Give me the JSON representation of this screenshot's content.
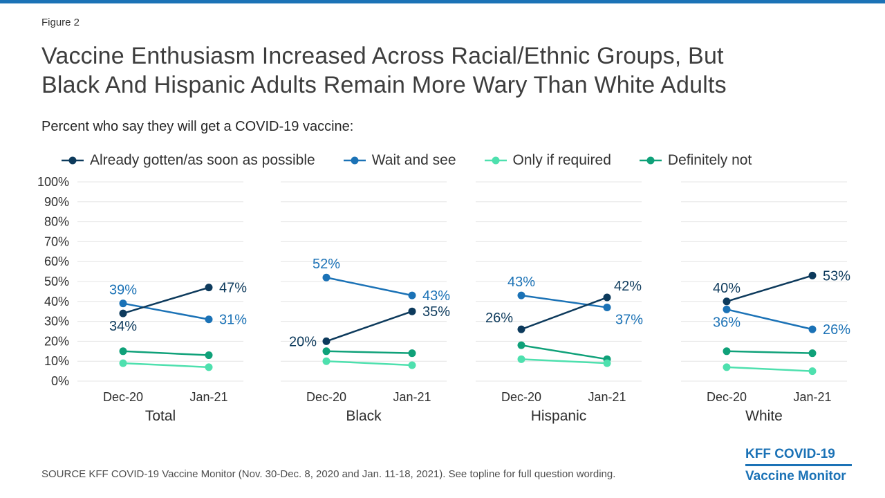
{
  "header": {
    "figure_label": "Figure 2",
    "title_line1": "Vaccine Enthusiasm Increased Across Racial/Ethnic Groups, But",
    "title_line2": "Black And Hispanic Adults Remain More Wary Than White Adults",
    "subtitle": "Percent who say they will get a COVID-19 vaccine:"
  },
  "footer": {
    "source": "SOURCE KFF COVID-19 Vaccine Monitor (Nov. 30-Dec. 8, 2020 and Jan. 11-18, 2021). See topline for full question wording.",
    "logo_line1": "KFF COVID-19",
    "logo_line2": "Vaccine Monitor"
  },
  "colors": {
    "accent": "#1b72b6",
    "navy": "#0d3a5c",
    "blue": "#1b72b6",
    "mint": "#4ee0ae",
    "green": "#0fa179",
    "grid": "#e4e4e4",
    "title_text": "#3d3d3d",
    "axis_text": "#2e2e2e"
  },
  "chart_data": {
    "type": "line",
    "categories": [
      "Dec-20",
      "Jan-21"
    ],
    "ylim": [
      0,
      100
    ],
    "y_tick_step": 10,
    "y_tick_suffix": "%",
    "grid": true,
    "legend_position": "top",
    "legend": [
      {
        "label": "Already gotten/as soon as possible",
        "color": "#0d3a5c"
      },
      {
        "label": "Wait and see",
        "color": "#1b72b6"
      },
      {
        "label": "Only if required",
        "color": "#4ee0ae"
      },
      {
        "label": "Definitely not",
        "color": "#0fa179"
      }
    ],
    "panels": [
      {
        "label": "Total",
        "series": [
          {
            "name": "Already gotten/as soon as possible",
            "color": "#0d3a5c",
            "values": [
              34,
              47
            ],
            "labels": [
              {
                "text": "34%",
                "pos": "below"
              },
              {
                "text": "47%",
                "pos": "right"
              }
            ]
          },
          {
            "name": "Wait and see",
            "color": "#1b72b6",
            "values": [
              39,
              31
            ],
            "labels": [
              {
                "text": "39%",
                "pos": "above"
              },
              {
                "text": "31%",
                "pos": "right"
              }
            ]
          },
          {
            "name": "Only if required",
            "color": "#4ee0ae",
            "values": [
              9,
              7
            ],
            "labels": [
              null,
              null
            ]
          },
          {
            "name": "Definitely not",
            "color": "#0fa179",
            "values": [
              15,
              13
            ],
            "labels": [
              null,
              null
            ]
          }
        ]
      },
      {
        "label": "Black",
        "series": [
          {
            "name": "Already gotten/as soon as possible",
            "color": "#0d3a5c",
            "values": [
              20,
              35
            ],
            "labels": [
              {
                "text": "20%",
                "pos": "left"
              },
              {
                "text": "35%",
                "pos": "right"
              }
            ]
          },
          {
            "name": "Wait and see",
            "color": "#1b72b6",
            "values": [
              52,
              43
            ],
            "labels": [
              {
                "text": "52%",
                "pos": "above"
              },
              {
                "text": "43%",
                "pos": "right"
              }
            ]
          },
          {
            "name": "Only if required",
            "color": "#4ee0ae",
            "values": [
              10,
              8
            ],
            "labels": [
              null,
              null
            ]
          },
          {
            "name": "Definitely not",
            "color": "#0fa179",
            "values": [
              15,
              14
            ],
            "labels": [
              null,
              null
            ]
          }
        ]
      },
      {
        "label": "Hispanic",
        "series": [
          {
            "name": "Already gotten/as soon as possible",
            "color": "#0d3a5c",
            "values": [
              26,
              42
            ],
            "labels": [
              {
                "text": "26%",
                "pos": "above-left"
              },
              {
                "text": "42%",
                "pos": "above-right"
              }
            ]
          },
          {
            "name": "Wait and see",
            "color": "#1b72b6",
            "values": [
              43,
              37
            ],
            "labels": [
              {
                "text": "43%",
                "pos": "above"
              },
              {
                "text": "37%",
                "pos": "below-right"
              }
            ]
          },
          {
            "name": "Only if required",
            "color": "#4ee0ae",
            "values": [
              11,
              9
            ],
            "labels": [
              null,
              null
            ]
          },
          {
            "name": "Definitely not",
            "color": "#0fa179",
            "values": [
              18,
              11
            ],
            "labels": [
              null,
              null
            ]
          }
        ]
      },
      {
        "label": "White",
        "series": [
          {
            "name": "Already gotten/as soon as possible",
            "color": "#0d3a5c",
            "values": [
              40,
              53
            ],
            "labels": [
              {
                "text": "40%",
                "pos": "above"
              },
              {
                "text": "53%",
                "pos": "right"
              }
            ]
          },
          {
            "name": "Wait and see",
            "color": "#1b72b6",
            "values": [
              36,
              26
            ],
            "labels": [
              {
                "text": "36%",
                "pos": "below"
              },
              {
                "text": "26%",
                "pos": "right"
              }
            ]
          },
          {
            "name": "Only if required",
            "color": "#4ee0ae",
            "values": [
              7,
              5
            ],
            "labels": [
              null,
              null
            ]
          },
          {
            "name": "Definitely not",
            "color": "#0fa179",
            "values": [
              15,
              14
            ],
            "labels": [
              null,
              null
            ]
          }
        ]
      }
    ]
  }
}
